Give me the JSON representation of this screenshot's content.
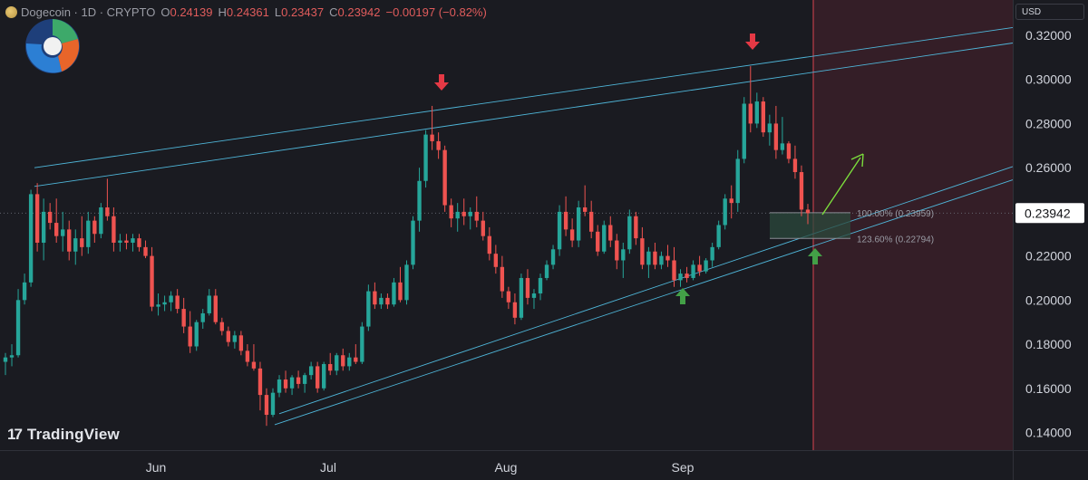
{
  "header": {
    "symbol": "Dogecoin · 1D · CRYPTO",
    "o_label": "O",
    "o_value": "0.24139",
    "h_label": "H",
    "h_value": "0.24361",
    "l_label": "L",
    "l_value": "0.23437",
    "c_label": "C",
    "c_value": "0.23942",
    "change": "−0.00197 (−0.82%)"
  },
  "currency": "USD",
  "watermark": "TradingView",
  "colors": {
    "background": "#1a1b21",
    "up": "#26a69a",
    "down": "#ef5350",
    "trendline": "#4fb6d9",
    "zone": "#3a1f28",
    "current_price_label": "#ffffff",
    "arrow_down": "#e53945",
    "arrow_up": "#43a047",
    "projection_arrow": "#7bdc3c"
  },
  "chart_data": {
    "type": "candlestick",
    "symbol": "Dogecoin",
    "interval": "1D",
    "ylim": [
      0.132,
      0.336
    ],
    "yticks": [
      "0.32000",
      "0.30000",
      "0.28000",
      "0.26000",
      "0.22000",
      "0.20000",
      "0.18000",
      "0.16000",
      "0.14000"
    ],
    "xticks": [
      "Jun",
      "Jul",
      "Aug",
      "Sep"
    ],
    "current_price": "0.23942",
    "fib_levels": [
      {
        "label": "100.00% (0.23959)",
        "value": 0.23959
      },
      {
        "label": "123.60% (0.22794)",
        "value": 0.22794
      }
    ],
    "candles": [
      [
        0.172,
        0.176,
        0.166,
        0.174
      ],
      [
        0.174,
        0.18,
        0.17,
        0.175
      ],
      [
        0.175,
        0.205,
        0.174,
        0.2
      ],
      [
        0.2,
        0.212,
        0.198,
        0.208
      ],
      [
        0.208,
        0.25,
        0.206,
        0.248
      ],
      [
        0.248,
        0.253,
        0.222,
        0.226
      ],
      [
        0.226,
        0.246,
        0.218,
        0.24
      ],
      [
        0.24,
        0.244,
        0.232,
        0.235
      ],
      [
        0.235,
        0.246,
        0.226,
        0.229
      ],
      [
        0.229,
        0.24,
        0.222,
        0.232
      ],
      [
        0.232,
        0.236,
        0.218,
        0.222
      ],
      [
        0.222,
        0.232,
        0.216,
        0.228
      ],
      [
        0.228,
        0.238,
        0.22,
        0.224
      ],
      [
        0.224,
        0.24,
        0.221,
        0.236
      ],
      [
        0.236,
        0.238,
        0.226,
        0.23
      ],
      [
        0.23,
        0.244,
        0.228,
        0.242
      ],
      [
        0.242,
        0.255,
        0.236,
        0.238
      ],
      [
        0.238,
        0.242,
        0.222,
        0.226
      ],
      [
        0.226,
        0.23,
        0.222,
        0.227
      ],
      [
        0.227,
        0.23,
        0.223,
        0.226
      ],
      [
        0.226,
        0.23,
        0.222,
        0.228
      ],
      [
        0.228,
        0.23,
        0.222,
        0.224
      ],
      [
        0.224,
        0.227,
        0.219,
        0.22
      ],
      [
        0.22,
        0.224,
        0.195,
        0.197
      ],
      [
        0.197,
        0.203,
        0.193,
        0.198
      ],
      [
        0.198,
        0.202,
        0.195,
        0.199
      ],
      [
        0.199,
        0.204,
        0.195,
        0.202
      ],
      [
        0.202,
        0.205,
        0.194,
        0.196
      ],
      [
        0.196,
        0.201,
        0.185,
        0.188
      ],
      [
        0.188,
        0.195,
        0.176,
        0.179
      ],
      [
        0.179,
        0.191,
        0.177,
        0.19
      ],
      [
        0.19,
        0.196,
        0.187,
        0.194
      ],
      [
        0.194,
        0.205,
        0.193,
        0.202
      ],
      [
        0.202,
        0.205,
        0.189,
        0.19
      ],
      [
        0.19,
        0.192,
        0.184,
        0.186
      ],
      [
        0.186,
        0.188,
        0.179,
        0.181
      ],
      [
        0.181,
        0.186,
        0.178,
        0.184
      ],
      [
        0.184,
        0.186,
        0.175,
        0.177
      ],
      [
        0.177,
        0.18,
        0.17,
        0.172
      ],
      [
        0.172,
        0.18,
        0.168,
        0.169
      ],
      [
        0.169,
        0.172,
        0.15,
        0.157
      ],
      [
        0.157,
        0.16,
        0.143,
        0.148
      ],
      [
        0.148,
        0.16,
        0.147,
        0.158
      ],
      [
        0.158,
        0.166,
        0.156,
        0.164
      ],
      [
        0.164,
        0.168,
        0.158,
        0.16
      ],
      [
        0.16,
        0.166,
        0.157,
        0.165
      ],
      [
        0.165,
        0.168,
        0.16,
        0.162
      ],
      [
        0.162,
        0.167,
        0.158,
        0.166
      ],
      [
        0.166,
        0.172,
        0.164,
        0.17
      ],
      [
        0.17,
        0.172,
        0.158,
        0.16
      ],
      [
        0.16,
        0.172,
        0.159,
        0.171
      ],
      [
        0.171,
        0.176,
        0.166,
        0.168
      ],
      [
        0.168,
        0.176,
        0.166,
        0.175
      ],
      [
        0.175,
        0.178,
        0.168,
        0.17
      ],
      [
        0.17,
        0.176,
        0.168,
        0.174
      ],
      [
        0.174,
        0.18,
        0.171,
        0.172
      ],
      [
        0.172,
        0.19,
        0.171,
        0.188
      ],
      [
        0.188,
        0.207,
        0.186,
        0.204
      ],
      [
        0.204,
        0.208,
        0.196,
        0.198
      ],
      [
        0.198,
        0.203,
        0.196,
        0.201
      ],
      [
        0.201,
        0.203,
        0.196,
        0.198
      ],
      [
        0.198,
        0.21,
        0.197,
        0.208
      ],
      [
        0.208,
        0.215,
        0.199,
        0.2
      ],
      [
        0.2,
        0.218,
        0.198,
        0.216
      ],
      [
        0.216,
        0.238,
        0.214,
        0.236
      ],
      [
        0.236,
        0.26,
        0.231,
        0.254
      ],
      [
        0.254,
        0.277,
        0.251,
        0.275
      ],
      [
        0.275,
        0.288,
        0.268,
        0.272
      ],
      [
        0.272,
        0.276,
        0.264,
        0.268
      ],
      [
        0.268,
        0.27,
        0.24,
        0.243
      ],
      [
        0.243,
        0.246,
        0.233,
        0.237
      ],
      [
        0.237,
        0.244,
        0.231,
        0.24
      ],
      [
        0.24,
        0.246,
        0.234,
        0.238
      ],
      [
        0.238,
        0.242,
        0.232,
        0.24
      ],
      [
        0.24,
        0.247,
        0.233,
        0.236
      ],
      [
        0.236,
        0.24,
        0.227,
        0.229
      ],
      [
        0.229,
        0.233,
        0.218,
        0.221
      ],
      [
        0.221,
        0.225,
        0.212,
        0.215
      ],
      [
        0.215,
        0.22,
        0.201,
        0.204
      ],
      [
        0.204,
        0.206,
        0.196,
        0.199
      ],
      [
        0.199,
        0.203,
        0.189,
        0.192
      ],
      [
        0.192,
        0.212,
        0.191,
        0.21
      ],
      [
        0.21,
        0.214,
        0.198,
        0.201
      ],
      [
        0.201,
        0.205,
        0.196,
        0.203
      ],
      [
        0.203,
        0.212,
        0.2,
        0.21
      ],
      [
        0.21,
        0.218,
        0.209,
        0.216
      ],
      [
        0.216,
        0.225,
        0.214,
        0.223
      ],
      [
        0.223,
        0.243,
        0.22,
        0.24
      ],
      [
        0.24,
        0.247,
        0.229,
        0.232
      ],
      [
        0.232,
        0.237,
        0.224,
        0.227
      ],
      [
        0.227,
        0.245,
        0.224,
        0.242
      ],
      [
        0.242,
        0.252,
        0.238,
        0.24
      ],
      [
        0.24,
        0.245,
        0.228,
        0.231
      ],
      [
        0.231,
        0.234,
        0.22,
        0.222
      ],
      [
        0.222,
        0.236,
        0.221,
        0.234
      ],
      [
        0.234,
        0.238,
        0.224,
        0.227
      ],
      [
        0.227,
        0.23,
        0.214,
        0.218
      ],
      [
        0.218,
        0.226,
        0.21,
        0.223
      ],
      [
        0.223,
        0.241,
        0.221,
        0.238
      ],
      [
        0.238,
        0.24,
        0.225,
        0.228
      ],
      [
        0.228,
        0.233,
        0.214,
        0.216
      ],
      [
        0.216,
        0.224,
        0.21,
        0.222
      ],
      [
        0.222,
        0.226,
        0.214,
        0.216
      ],
      [
        0.216,
        0.222,
        0.214,
        0.22
      ],
      [
        0.22,
        0.225,
        0.215,
        0.218
      ],
      [
        0.218,
        0.224,
        0.206,
        0.209
      ],
      [
        0.209,
        0.214,
        0.206,
        0.212
      ],
      [
        0.212,
        0.215,
        0.208,
        0.21
      ],
      [
        0.21,
        0.218,
        0.209,
        0.216
      ],
      [
        0.216,
        0.22,
        0.211,
        0.213
      ],
      [
        0.213,
        0.219,
        0.212,
        0.218
      ],
      [
        0.218,
        0.226,
        0.215,
        0.224
      ],
      [
        0.224,
        0.236,
        0.223,
        0.234
      ],
      [
        0.234,
        0.248,
        0.232,
        0.246
      ],
      [
        0.246,
        0.252,
        0.237,
        0.244
      ],
      [
        0.244,
        0.268,
        0.24,
        0.264
      ],
      [
        0.264,
        0.292,
        0.262,
        0.289
      ],
      [
        0.289,
        0.306,
        0.276,
        0.28
      ],
      [
        0.28,
        0.294,
        0.278,
        0.29
      ],
      [
        0.29,
        0.292,
        0.274,
        0.276
      ],
      [
        0.276,
        0.284,
        0.27,
        0.28
      ],
      [
        0.28,
        0.288,
        0.264,
        0.268
      ],
      [
        0.268,
        0.283,
        0.266,
        0.271
      ],
      [
        0.271,
        0.272,
        0.262,
        0.264
      ],
      [
        0.264,
        0.27,
        0.255,
        0.258
      ],
      [
        0.258,
        0.261,
        0.238,
        0.241
      ],
      [
        0.241,
        0.2436,
        0.2344,
        0.2394
      ]
    ]
  }
}
